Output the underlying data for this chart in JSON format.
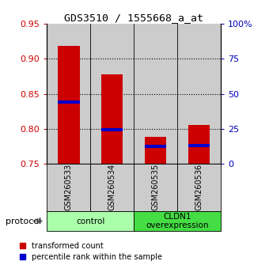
{
  "title": "GDS3510 / 1555668_a_at",
  "samples": [
    "GSM260533",
    "GSM260534",
    "GSM260535",
    "GSM260536"
  ],
  "red_tops": [
    0.918,
    0.878,
    0.788,
    0.806
  ],
  "red_bottoms": [
    0.75,
    0.75,
    0.75,
    0.75
  ],
  "blue_values": [
    0.838,
    0.799,
    0.775,
    0.776
  ],
  "ylim_left": [
    0.75,
    0.95
  ],
  "ylim_right": [
    0,
    100
  ],
  "yticks_left": [
    0.75,
    0.8,
    0.85,
    0.9,
    0.95
  ],
  "yticks_right": [
    0,
    25,
    50,
    75,
    100
  ],
  "ytick_labels_left": [
    "0.75",
    "0.80",
    "0.85",
    "0.90",
    "0.95"
  ],
  "ytick_labels_right": [
    "0",
    "25",
    "50",
    "75",
    "100%"
  ],
  "groups": [
    {
      "label": "control",
      "samples": [
        0,
        1
      ],
      "color": "#aaffaa"
    },
    {
      "label": "CLDN1\noverexpression",
      "samples": [
        2,
        3
      ],
      "color": "#44dd44"
    }
  ],
  "protocol_label": "protocol",
  "bar_width": 0.5,
  "red_color": "#cc0000",
  "blue_color": "#0000cc",
  "tick_color_left": "#cc0000",
  "tick_color_right": "#0000bb",
  "background_color": "#ffffff",
  "bar_area_bg": "#cccccc",
  "blue_bar_height": 0.005,
  "hgrid_vals": [
    0.8,
    0.85,
    0.9
  ]
}
